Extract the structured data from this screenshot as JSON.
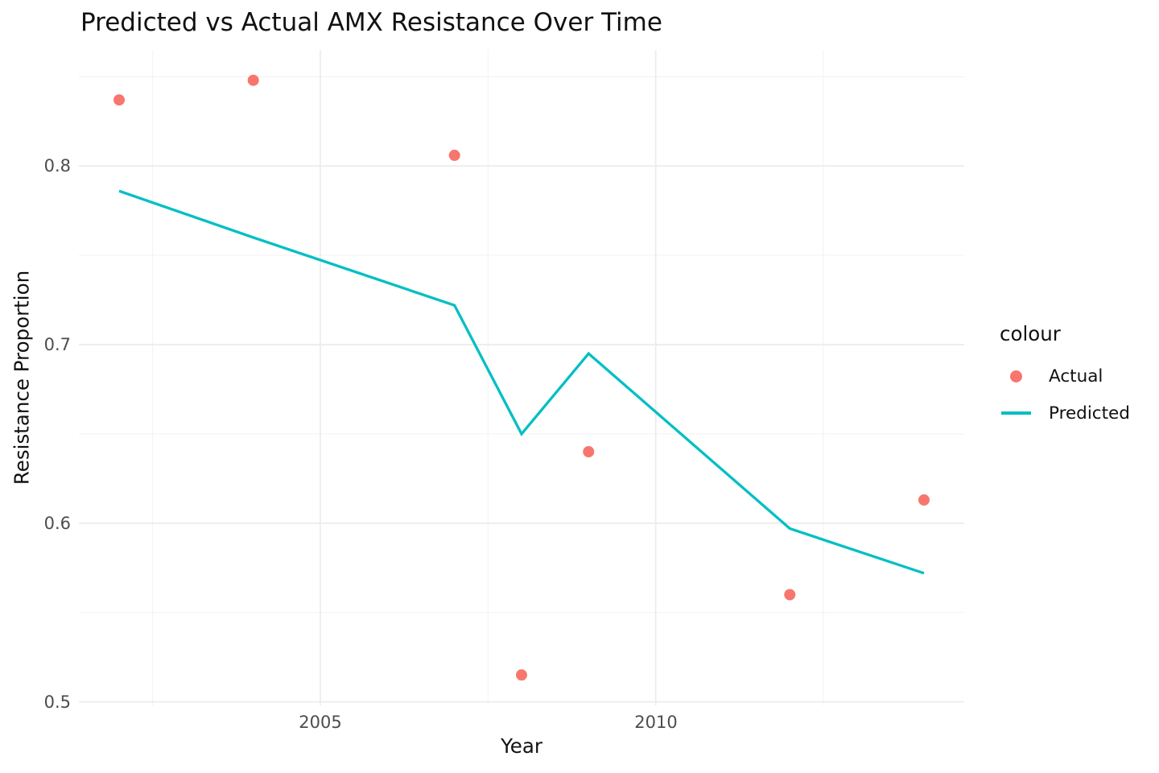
{
  "title": "Predicted vs Actual AMX Resistance Over Time",
  "colors": {
    "actual": "#F8766D",
    "predicted": "#00BFC4",
    "grid_major": "#EBEBEB",
    "grid_minor": "#F3F3F3",
    "tick_label": "#4D4D4D",
    "text": "#111111",
    "background": "#FFFFFF"
  },
  "legend": {
    "title": "colour",
    "items": [
      {
        "label": "Actual",
        "glyph": "point",
        "color": "#F8766D"
      },
      {
        "label": "Predicted",
        "glyph": "line",
        "color": "#00BFC4"
      }
    ]
  },
  "chart_data": {
    "type": "line",
    "title": "Predicted vs Actual AMX Resistance Over Time",
    "xlabel": "Year",
    "ylabel": "Resistance Proportion",
    "xlim": [
      2001.4,
      2014.6
    ],
    "ylim": [
      0.498,
      0.865
    ],
    "x_ticks": [
      2005,
      2010
    ],
    "x_tick_labels": [
      "2005",
      "2010"
    ],
    "x_minor_ticks": [
      2002.5,
      2007.5,
      2012.5
    ],
    "y_ticks": [
      0.5,
      0.6,
      0.7,
      0.8
    ],
    "y_tick_labels": [
      "0.5",
      "0.6",
      "0.7",
      "0.8"
    ],
    "y_minor_ticks": [
      0.55,
      0.65,
      0.75,
      0.85
    ],
    "grid": true,
    "legend_position": "right",
    "x": [
      2002,
      2004,
      2007,
      2008,
      2009,
      2012,
      2014
    ],
    "series": [
      {
        "name": "Actual",
        "type": "scatter",
        "color": "#F8766D",
        "values": [
          0.837,
          0.848,
          0.806,
          0.515,
          0.64,
          0.56,
          0.613
        ]
      },
      {
        "name": "Predicted",
        "type": "line",
        "color": "#00BFC4",
        "values": [
          0.786,
          0.76,
          0.722,
          0.65,
          0.695,
          0.597,
          0.572
        ]
      }
    ]
  }
}
